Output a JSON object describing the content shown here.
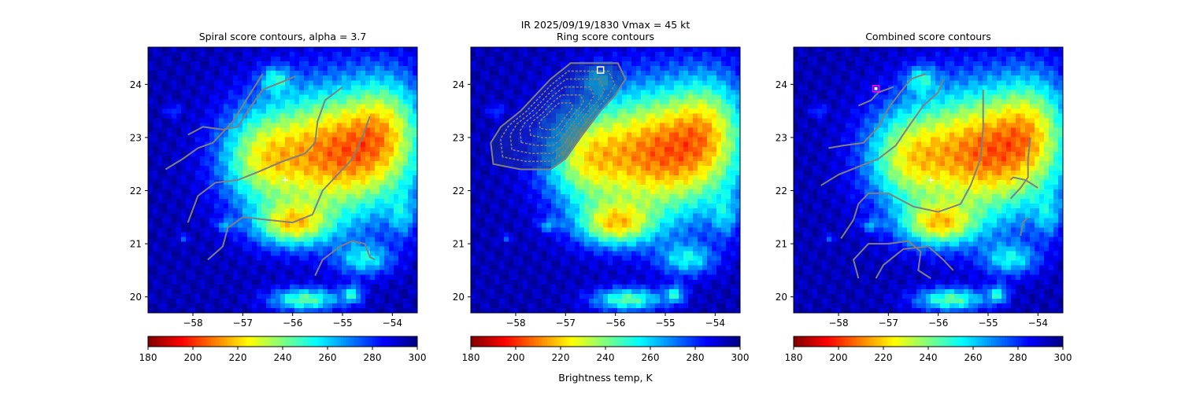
{
  "figure": {
    "suptitle": "IR  2025/09/19/1830    Vmax = 45 kt",
    "colorbar_label": "Brightness temp, K"
  },
  "colors": {
    "contour": "#808080",
    "center_marker": "#ffffff",
    "ring_marker": "#ffffff",
    "combined_marker": "#ff00ff"
  },
  "chart_data": [
    {
      "type": "heatmap",
      "title": "Spiral score contours, alpha =  3.7",
      "xlim": [
        -58.9,
        -53.5
      ],
      "ylim": [
        19.7,
        24.7
      ],
      "xticks": [
        -58,
        -57,
        -56,
        -55,
        -54
      ],
      "xtick_labels": [
        "−58",
        "−57",
        "−56",
        "−55",
        "−54"
      ],
      "yticks": [
        20,
        21,
        22,
        23,
        24
      ],
      "ytick_labels": [
        "20",
        "21",
        "22",
        "23",
        "24"
      ],
      "colormap": "jet_r",
      "value_range": [
        180,
        300
      ],
      "colorbar_ticks": [
        180,
        200,
        220,
        240,
        260,
        280,
        300
      ],
      "center": [
        -56.15,
        22.2
      ],
      "contours": [
        [
          [
            -58.1,
            23.05
          ],
          [
            -57.8,
            23.2
          ],
          [
            -57.4,
            23.15
          ],
          [
            -57.1,
            23.2
          ],
          [
            -56.9,
            23.5
          ],
          [
            -56.6,
            23.9
          ],
          [
            -56.2,
            24.05
          ],
          [
            -55.95,
            24.15
          ]
        ],
        [
          [
            -58.55,
            22.4
          ],
          [
            -58.2,
            22.6
          ],
          [
            -57.9,
            22.8
          ],
          [
            -57.6,
            22.9
          ],
          [
            -57.2,
            23.3
          ],
          [
            -56.9,
            23.75
          ],
          [
            -56.6,
            24.2
          ]
        ],
        [
          [
            -58.1,
            21.4
          ],
          [
            -57.9,
            21.9
          ],
          [
            -57.55,
            22.15
          ],
          [
            -57.1,
            22.2
          ],
          [
            -56.7,
            22.35
          ],
          [
            -56.2,
            22.55
          ],
          [
            -55.75,
            22.7
          ],
          [
            -55.55,
            22.9
          ],
          [
            -55.5,
            23.3
          ],
          [
            -55.35,
            23.7
          ],
          [
            -55.0,
            23.95
          ]
        ],
        [
          [
            -57.7,
            20.7
          ],
          [
            -57.4,
            20.95
          ],
          [
            -57.3,
            21.3
          ],
          [
            -57.0,
            21.5
          ],
          [
            -56.5,
            21.45
          ],
          [
            -56.0,
            21.4
          ],
          [
            -55.6,
            21.55
          ],
          [
            -55.4,
            22.0
          ],
          [
            -55.1,
            22.3
          ],
          [
            -54.8,
            22.6
          ],
          [
            -54.6,
            23.0
          ],
          [
            -54.45,
            23.4
          ]
        ],
        [
          [
            -55.55,
            20.4
          ],
          [
            -55.4,
            20.7
          ],
          [
            -55.05,
            20.95
          ],
          [
            -54.8,
            21.05
          ],
          [
            -54.55,
            21.0
          ],
          [
            -54.45,
            20.75
          ],
          [
            -54.35,
            20.7
          ]
        ]
      ],
      "markers": []
    },
    {
      "type": "heatmap",
      "title": "Ring score contours",
      "xlim": [
        -58.9,
        -53.5
      ],
      "ylim": [
        19.7,
        24.7
      ],
      "xticks": [
        -58,
        -57,
        -56,
        -55,
        -54
      ],
      "xtick_labels": [
        "−58",
        "−57",
        "−56",
        "−55",
        "−54"
      ],
      "yticks": [
        20,
        21,
        22,
        23,
        24
      ],
      "ytick_labels": [
        "20",
        "21",
        "22",
        "23",
        "24"
      ],
      "colormap": "jet_r",
      "value_range": [
        180,
        300
      ],
      "colorbar_ticks": [
        180,
        200,
        220,
        240,
        260,
        280,
        300
      ],
      "center": null,
      "ring_region": [
        [
          -58.45,
          22.5
        ],
        [
          -58.5,
          22.9
        ],
        [
          -58.3,
          23.2
        ],
        [
          -57.9,
          23.5
        ],
        [
          -57.6,
          23.8
        ],
        [
          -57.3,
          24.1
        ],
        [
          -56.9,
          24.4
        ],
        [
          -56.5,
          24.4
        ],
        [
          -55.95,
          24.4
        ],
        [
          -55.8,
          24.1
        ],
        [
          -56.0,
          23.8
        ],
        [
          -56.3,
          23.5
        ],
        [
          -56.7,
          23.0
        ],
        [
          -57.0,
          22.6
        ],
        [
          -57.3,
          22.4
        ],
        [
          -57.9,
          22.4
        ]
      ],
      "contours": [],
      "markers": [
        {
          "kind": "square",
          "x": -56.3,
          "y": 24.27
        }
      ]
    },
    {
      "type": "heatmap",
      "title": "Combined score contours",
      "xlim": [
        -58.9,
        -53.5
      ],
      "ylim": [
        19.7,
        24.7
      ],
      "xticks": [
        -58,
        -57,
        -56,
        -55,
        -54
      ],
      "xtick_labels": [
        "−58",
        "−57",
        "−56",
        "−55",
        "−54"
      ],
      "yticks": [
        20,
        21,
        22,
        23,
        24
      ],
      "ytick_labels": [
        "20",
        "21",
        "22",
        "23",
        "24"
      ],
      "colormap": "jet_r",
      "value_range": [
        180,
        300
      ],
      "colorbar_ticks": [
        180,
        200,
        220,
        240,
        260,
        280,
        300
      ],
      "center": [
        -56.15,
        22.2
      ],
      "contours": [
        [
          [
            -57.6,
            23.6
          ],
          [
            -57.35,
            23.7
          ],
          [
            -57.2,
            23.85
          ],
          [
            -56.9,
            23.95
          ]
        ],
        [
          [
            -58.2,
            22.8
          ],
          [
            -57.9,
            22.85
          ],
          [
            -57.5,
            22.9
          ],
          [
            -57.2,
            23.2
          ],
          [
            -57.0,
            23.55
          ],
          [
            -56.8,
            23.8
          ],
          [
            -56.55,
            24.1
          ],
          [
            -56.25,
            24.2
          ]
        ],
        [
          [
            -58.35,
            22.1
          ],
          [
            -58.0,
            22.3
          ],
          [
            -57.6,
            22.45
          ],
          [
            -57.2,
            22.6
          ],
          [
            -56.85,
            22.85
          ],
          [
            -56.6,
            23.2
          ],
          [
            -56.3,
            23.6
          ],
          [
            -56.0,
            23.85
          ],
          [
            -55.9,
            24.1
          ]
        ],
        [
          [
            -57.95,
            21.1
          ],
          [
            -57.7,
            21.45
          ],
          [
            -57.6,
            21.75
          ],
          [
            -57.4,
            21.95
          ],
          [
            -57.0,
            21.95
          ],
          [
            -56.5,
            21.7
          ],
          [
            -56.0,
            21.6
          ],
          [
            -55.55,
            21.75
          ],
          [
            -55.35,
            22.1
          ],
          [
            -55.15,
            22.6
          ],
          [
            -55.1,
            23.2
          ],
          [
            -55.1,
            23.9
          ]
        ],
        [
          [
            -57.6,
            20.35
          ],
          [
            -57.7,
            20.7
          ],
          [
            -57.4,
            21.0
          ],
          [
            -57.0,
            21.0
          ],
          [
            -56.6,
            21.05
          ],
          [
            -56.35,
            20.85
          ],
          [
            -56.4,
            20.5
          ],
          [
            -56.15,
            20.35
          ]
        ],
        [
          [
            -57.25,
            20.35
          ],
          [
            -57.1,
            20.6
          ],
          [
            -56.7,
            20.9
          ],
          [
            -56.2,
            20.95
          ],
          [
            -55.9,
            20.7
          ],
          [
            -55.7,
            20.5
          ]
        ],
        [
          [
            -54.55,
            21.85
          ],
          [
            -54.35,
            22.05
          ],
          [
            -54.2,
            22.25
          ],
          [
            -54.2,
            22.6
          ],
          [
            -54.15,
            23.0
          ]
        ],
        [
          [
            -54.35,
            21.15
          ],
          [
            -54.3,
            21.4
          ],
          [
            -54.2,
            21.5
          ]
        ],
        [
          [
            -54.55,
            22.2
          ],
          [
            -54.5,
            22.25
          ],
          [
            -54.25,
            22.2
          ],
          [
            -54.0,
            22.05
          ]
        ]
      ],
      "markers": [
        {
          "kind": "square-magenta",
          "x": -57.25,
          "y": 23.92
        }
      ]
    }
  ]
}
